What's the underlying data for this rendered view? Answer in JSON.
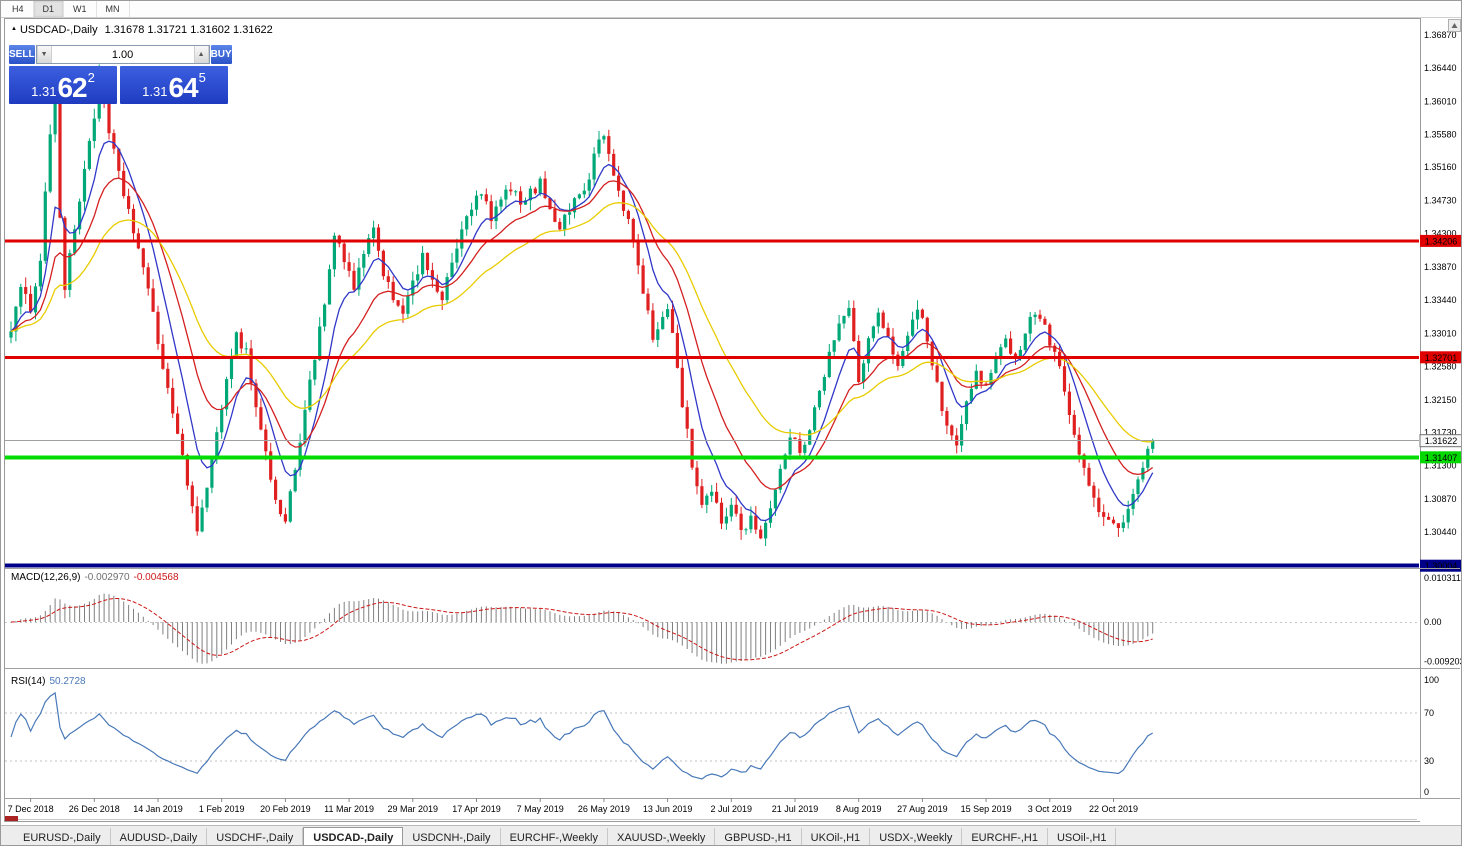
{
  "toolbar": {
    "timeframes": [
      "H4",
      "D1",
      "W1",
      "MN"
    ],
    "active": "D1"
  },
  "chart_header": {
    "symbol_title": "USDCAD-,Daily",
    "ohlc": "1.31678 1.31721 1.31602 1.31622"
  },
  "trade_panel": {
    "sell_label": "SELL",
    "buy_label": "BUY",
    "volume": "1.00",
    "bid_prefix": "1.31",
    "bid_big": "62",
    "bid_sup": "2",
    "ask_prefix": "1.31",
    "ask_big": "64",
    "ask_sup": "5"
  },
  "price_axis": {
    "ticks": [
      "1.36870",
      "1.36440",
      "1.36010",
      "1.35580",
      "1.35160",
      "1.34730",
      "1.34300",
      "1.33870",
      "1.33440",
      "1.33010",
      "1.32580",
      "1.32150",
      "1.31730",
      "1.31300",
      "1.30870",
      "1.30440"
    ],
    "tags": [
      {
        "text": "1.34206",
        "bg": "#e00000",
        "fg": "#ffffff"
      },
      {
        "text": "1.32701",
        "bg": "#e00000",
        "fg": "#ffffff"
      },
      {
        "text": "1.31622",
        "bg": "#f8f8f8",
        "fg": "#000000",
        "border": "#707070"
      },
      {
        "text": "1.31407",
        "bg": "#00d800",
        "fg": "#000000"
      },
      {
        "text": "1.30004",
        "bg": "#000088",
        "fg": "#ffffff"
      }
    ]
  },
  "macd_panel": {
    "name": "MACD(12,26,9)",
    "value": "-0.002970",
    "signal_value": "-0.004568",
    "axis_ticks": [
      "0.010311",
      "0.00",
      "-0.009203"
    ]
  },
  "rsi_panel": {
    "name": "RSI(14)",
    "value": "50.2728",
    "axis_ticks": [
      "100",
      "70",
      "30",
      "0"
    ],
    "levels": [
      70,
      30
    ]
  },
  "date_axis": {
    "labels": [
      {
        "text": "7 Dec 2018",
        "bar": 4
      },
      {
        "text": "26 Dec 2018",
        "bar": 17
      },
      {
        "text": "14 Jan 2019",
        "bar": 30
      },
      {
        "text": "1 Feb 2019",
        "bar": 43
      },
      {
        "text": "20 Feb 2019",
        "bar": 56
      },
      {
        "text": "11 Mar 2019",
        "bar": 69
      },
      {
        "text": "29 Mar 2019",
        "bar": 82
      },
      {
        "text": "17 Apr 2019",
        "bar": 95
      },
      {
        "text": "7 May 2019",
        "bar": 108
      },
      {
        "text": "26 May 2019",
        "bar": 121
      },
      {
        "text": "13 Jun 2019",
        "bar": 134
      },
      {
        "text": "2 Jul 2019",
        "bar": 147
      },
      {
        "text": "21 Jul 2019",
        "bar": 160
      },
      {
        "text": "8 Aug 2019",
        "bar": 173
      },
      {
        "text": "27 Aug 2019",
        "bar": 186
      },
      {
        "text": "15 Sep 2019",
        "bar": 199
      },
      {
        "text": "3 Oct 2019",
        "bar": 212
      },
      {
        "text": "22 Oct 2019",
        "bar": 225
      }
    ]
  },
  "tabs": {
    "items": [
      "EURUSD-,Daily",
      "AUDUSD-,Daily",
      "USDCHF-,Daily",
      "USDCAD-,Daily",
      "USDCNH-,Daily",
      "EURCHF-,Weekly",
      "XAUUSD-,Weekly",
      "GBPUSD-,H1",
      "UKOil-,H1",
      "USDX-,Weekly",
      "EURCHF-,H1",
      "USOil-,H1"
    ],
    "active_index": 3
  },
  "colors": {
    "bull": "#00a878",
    "bear": "#e02020",
    "macd_hist": "#808080",
    "macd_signal": "#cc1818",
    "rsi_line": "#4878b8",
    "hline_red": "#e00000",
    "hline_green": "#00dc00",
    "hline_blue": "#000088"
  },
  "chart_data": {
    "type": "candlestick",
    "symbol": "USDCAD",
    "timeframe": "Daily",
    "ohlc_display": {
      "open": "1.31678",
      "high": "1.31721",
      "low": "1.31602",
      "close": "1.31622"
    },
    "bars_total": 234,
    "seed": 1234,
    "last_close": 1.31622,
    "ylim": [
      1.2995,
      1.3705
    ],
    "price_anchors": [
      [
        0,
        1.331
      ],
      [
        2,
        1.3355
      ],
      [
        4,
        1.3335
      ],
      [
        6,
        1.34
      ],
      [
        8,
        1.356
      ],
      [
        9,
        1.3628
      ],
      [
        10,
        1.345
      ],
      [
        11,
        1.336
      ],
      [
        13,
        1.3435
      ],
      [
        15,
        1.3515
      ],
      [
        17,
        1.3585
      ],
      [
        18,
        1.3632
      ],
      [
        20,
        1.356
      ],
      [
        22,
        1.3505
      ],
      [
        24,
        1.346
      ],
      [
        27,
        1.3385
      ],
      [
        30,
        1.329
      ],
      [
        33,
        1.32
      ],
      [
        36,
        1.3105
      ],
      [
        38,
        1.3052
      ],
      [
        40,
        1.3095
      ],
      [
        42,
        1.317
      ],
      [
        44,
        1.3248
      ],
      [
        46,
        1.3298
      ],
      [
        48,
        1.3278
      ],
      [
        50,
        1.3205
      ],
      [
        52,
        1.3148
      ],
      [
        54,
        1.3082
      ],
      [
        56,
        1.3058
      ],
      [
        58,
        1.3125
      ],
      [
        60,
        1.3205
      ],
      [
        62,
        1.3272
      ],
      [
        64,
        1.3335
      ],
      [
        66,
        1.3428
      ],
      [
        68,
        1.3392
      ],
      [
        70,
        1.3362
      ],
      [
        72,
        1.3402
      ],
      [
        74,
        1.3432
      ],
      [
        76,
        1.3382
      ],
      [
        78,
        1.3348
      ],
      [
        80,
        1.3332
      ],
      [
        82,
        1.3362
      ],
      [
        84,
        1.3398
      ],
      [
        86,
        1.3375
      ],
      [
        88,
        1.3342
      ],
      [
        90,
        1.3392
      ],
      [
        92,
        1.3432
      ],
      [
        94,
        1.3465
      ],
      [
        96,
        1.3482
      ],
      [
        98,
        1.3448
      ],
      [
        100,
        1.3472
      ],
      [
        102,
        1.3492
      ],
      [
        104,
        1.3465
      ],
      [
        106,
        1.3482
      ],
      [
        108,
        1.3495
      ],
      [
        110,
        1.3465
      ],
      [
        112,
        1.3438
      ],
      [
        114,
        1.3462
      ],
      [
        116,
        1.3482
      ],
      [
        118,
        1.3502
      ],
      [
        120,
        1.3552
      ],
      [
        121,
        1.3558
      ],
      [
        123,
        1.3505
      ],
      [
        125,
        1.3465
      ],
      [
        127,
        1.3422
      ],
      [
        129,
        1.3352
      ],
      [
        131,
        1.3295
      ],
      [
        133,
        1.3322
      ],
      [
        134,
        1.3338
      ],
      [
        135,
        1.3298
      ],
      [
        137,
        1.3212
      ],
      [
        139,
        1.3132
      ],
      [
        141,
        1.3082
      ],
      [
        143,
        1.3092
      ],
      [
        145,
        1.3058
      ],
      [
        147,
        1.3082
      ],
      [
        149,
        1.3048
      ],
      [
        151,
        1.3062
      ],
      [
        153,
        1.304
      ],
      [
        155,
        1.3072
      ],
      [
        157,
        1.3122
      ],
      [
        159,
        1.3172
      ],
      [
        161,
        1.3142
      ],
      [
        163,
        1.3182
      ],
      [
        165,
        1.3232
      ],
      [
        167,
        1.3272
      ],
      [
        169,
        1.3312
      ],
      [
        171,
        1.3332
      ],
      [
        173,
        1.3242
      ],
      [
        175,
        1.3292
      ],
      [
        177,
        1.3322
      ],
      [
        179,
        1.3292
      ],
      [
        181,
        1.3262
      ],
      [
        183,
        1.3302
      ],
      [
        185,
        1.3338
      ],
      [
        187,
        1.3292
      ],
      [
        189,
        1.3232
      ],
      [
        191,
        1.3182
      ],
      [
        193,
        1.3152
      ],
      [
        195,
        1.3212
      ],
      [
        197,
        1.3252
      ],
      [
        199,
        1.3232
      ],
      [
        201,
        1.3262
      ],
      [
        203,
        1.3292
      ],
      [
        205,
        1.3272
      ],
      [
        207,
        1.3302
      ],
      [
        209,
        1.3332
      ],
      [
        211,
        1.3312
      ],
      [
        213,
        1.3272
      ],
      [
        215,
        1.3232
      ],
      [
        217,
        1.3172
      ],
      [
        219,
        1.3122
      ],
      [
        221,
        1.3085
      ],
      [
        223,
        1.3062
      ],
      [
        225,
        1.3048
      ],
      [
        227,
        1.3058
      ],
      [
        229,
        1.3092
      ],
      [
        231,
        1.3132
      ],
      [
        233,
        1.31622
      ]
    ],
    "moving_averages": [
      {
        "period": 8,
        "color": "#3038c8"
      },
      {
        "period": 17,
        "color": "#d42020"
      },
      {
        "period": 34,
        "color": "#e8cc00"
      }
    ],
    "macd": {
      "fast": 12,
      "slow": 26,
      "signal": 9
    },
    "rsi": {
      "period": 14
    },
    "hlines": [
      {
        "price": 1.34206,
        "color": "#e00000",
        "width": 3
      },
      {
        "price": 1.32701,
        "color": "#e00000",
        "width": 3
      },
      {
        "price": 1.31407,
        "color": "#00dc00",
        "width": 4
      },
      {
        "price": 1.30004,
        "color": "#000088",
        "width": 4
      }
    ],
    "current_price": {
      "price": 1.31622,
      "color": "#a0a0a0"
    }
  }
}
